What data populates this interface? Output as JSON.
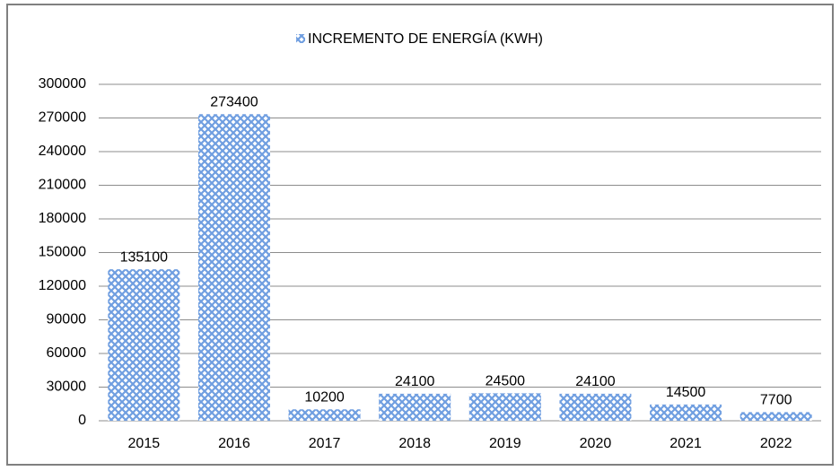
{
  "chart_data": {
    "type": "bar",
    "categories": [
      "2015",
      "2016",
      "2017",
      "2018",
      "2019",
      "2020",
      "2021",
      "2022"
    ],
    "series": [
      {
        "name": "INCREMENTO DE ENERGÍA (KWH)",
        "color": "#6f9ee0",
        "values": [
          135100,
          273400,
          10200,
          24100,
          24500,
          24100,
          14500,
          7700
        ]
      }
    ],
    "ylim": [
      0,
      300000
    ],
    "yticks": [
      0,
      30000,
      60000,
      90000,
      120000,
      150000,
      180000,
      210000,
      240000,
      270000,
      300000
    ],
    "grid": true,
    "legend": "top"
  }
}
